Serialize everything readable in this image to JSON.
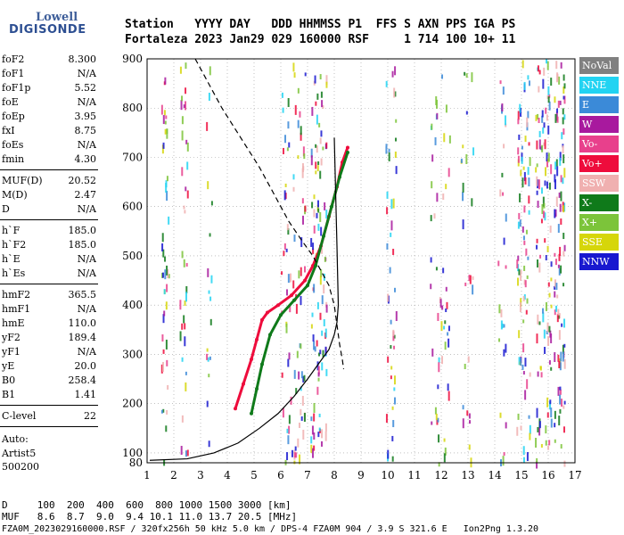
{
  "logo": {
    "line1": "Lowell",
    "line2": "DIGISONDE"
  },
  "header": {
    "labels_line": "Station   YYYY DAY   DDD HHMMSS P1  FFS S AXN PPS IGA PS",
    "values_line": "Fortaleza 2023 Jan29 029 160000 RSF     1 714 100 10+ 11"
  },
  "params": [
    {
      "key": "foF2",
      "value": "8.300"
    },
    {
      "key": "foF1",
      "value": "N/A"
    },
    {
      "key": "foF1p",
      "value": "5.52"
    },
    {
      "key": "foE",
      "value": "N/A"
    },
    {
      "key": "foEp",
      "value": "3.95"
    },
    {
      "key": "fxI",
      "value": "8.75"
    },
    {
      "key": "foEs",
      "value": "N/A"
    },
    {
      "key": "fmin",
      "value": "4.30"
    },
    {
      "key": "MUF(D)",
      "value": "20.52"
    },
    {
      "key": "M(D)",
      "value": "2.47"
    },
    {
      "key": "D",
      "value": "N/A"
    },
    {
      "key": "h`F",
      "value": "185.0"
    },
    {
      "key": "h`F2",
      "value": "185.0"
    },
    {
      "key": "h`E",
      "value": "N/A"
    },
    {
      "key": "h`Es",
      "value": "N/A"
    },
    {
      "key": "hmF2",
      "value": "365.5"
    },
    {
      "key": "hmF1",
      "value": "N/A"
    },
    {
      "key": "hmE",
      "value": "110.0"
    },
    {
      "key": "yF2",
      "value": "189.4"
    },
    {
      "key": "yF1",
      "value": "N/A"
    },
    {
      "key": "yE",
      "value": "20.0"
    },
    {
      "key": "B0",
      "value": "258.4"
    },
    {
      "key": "B1",
      "value": "1.41"
    },
    {
      "key": "C-level",
      "value": "22"
    }
  ],
  "footer_left": {
    "auto": "Auto:",
    "artist": "Artist5",
    "version": "500200"
  },
  "legend": [
    {
      "label": "NoVal",
      "color": "#808080"
    },
    {
      "label": "NNE",
      "color": "#22d3f2"
    },
    {
      "label": "E",
      "color": "#3b8ad8"
    },
    {
      "label": "W",
      "color": "#a8199e"
    },
    {
      "label": "Vo-",
      "color": "#e8408c"
    },
    {
      "label": "Vo+",
      "color": "#ee0c3c"
    },
    {
      "label": "SSW",
      "color": "#f0b0b0"
    },
    {
      "label": "X-",
      "color": "#0f7a1a"
    },
    {
      "label": "X+",
      "color": "#7cc43a"
    },
    {
      "label": "SSE",
      "color": "#d6d60a"
    },
    {
      "label": "NNW",
      "color": "#1818d0"
    }
  ],
  "bottom": {
    "d_line": "D     100  200  400  600  800 1000 1500 3000 [km]",
    "muf_line": "MUF   8.6  8.7  9.0  9.4 10.1 11.0 13.7 20.5 [MHz]",
    "file_line": "FZA0M_2023029160000.RSF / 320fx256h 50 kHz 5.0 km / DPS-4 FZA0M 904 / 3.9 S 321.6 E   Ion2Png 1.3.20"
  },
  "chart_data": {
    "type": "scatter",
    "title": "",
    "xlabel": "",
    "ylabel": "",
    "xlim": [
      1,
      17
    ],
    "ylim": [
      80,
      900
    ],
    "x_ticks": [
      1,
      2,
      3,
      4,
      5,
      6,
      7,
      8,
      9,
      10,
      11,
      12,
      13,
      14,
      15,
      16,
      17
    ],
    "y_ticks": [
      80,
      100,
      200,
      300,
      400,
      500,
      600,
      700,
      800,
      900
    ],
    "grid": true,
    "series": [
      {
        "name": "Vo+",
        "color": "#ee0c3c",
        "style": "trace",
        "x": [
          4.3,
          4.6,
          4.9,
          5.1,
          5.3,
          5.5,
          5.9,
          6.4,
          6.9,
          7.2,
          7.5,
          7.8,
          8.1,
          8.3,
          8.5
        ],
        "y": [
          190,
          240,
          290,
          330,
          370,
          385,
          400,
          420,
          450,
          480,
          520,
          580,
          640,
          690,
          720
        ]
      },
      {
        "name": "X-",
        "color": "#0f7a1a",
        "style": "trace",
        "x": [
          4.9,
          5.1,
          5.3,
          5.6,
          6.0,
          6.5,
          7.0,
          7.3,
          7.6,
          7.9,
          8.2,
          8.5
        ],
        "y": [
          180,
          230,
          280,
          340,
          380,
          410,
          440,
          480,
          540,
          600,
          660,
          710
        ]
      },
      {
        "style": "line",
        "color": "#000000",
        "x": [
          1.1,
          2.5,
          3.5,
          4.4,
          5.2,
          5.9,
          6.5,
          7.0,
          7.4,
          7.8,
          8.0,
          8.1,
          8.15,
          8.1,
          8.0
        ],
        "y": [
          85,
          88,
          100,
          120,
          150,
          180,
          215,
          250,
          280,
          310,
          340,
          365,
          400,
          520,
          740
        ]
      },
      {
        "style": "dashed",
        "color": "#000000",
        "x": [
          2.8,
          3.2,
          3.8,
          4.5,
          5.2,
          5.8,
          6.3,
          6.8,
          7.2,
          7.5,
          7.8,
          8.0,
          8.1,
          8.2,
          8.3,
          8.35
        ],
        "y": [
          900,
          860,
          800,
          740,
          680,
          620,
          570,
          530,
          500,
          470,
          440,
          400,
          360,
          320,
          290,
          270
        ]
      }
    ]
  }
}
